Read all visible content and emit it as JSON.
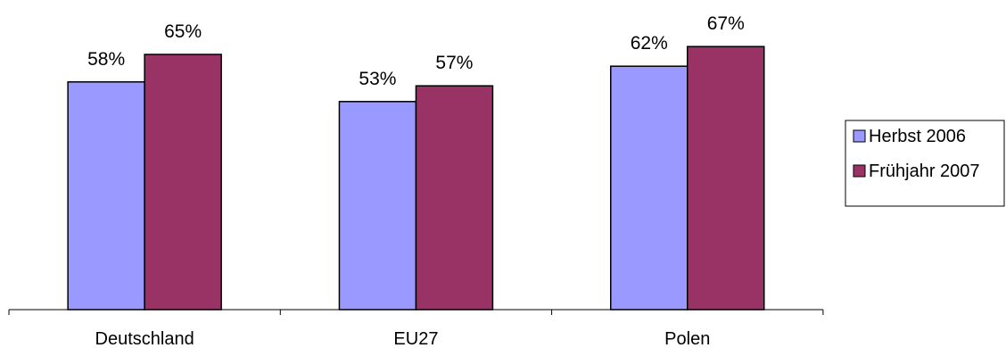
{
  "chart_data": {
    "type": "bar",
    "categories": [
      "Deutschland",
      "EU27",
      "Polen"
    ],
    "series": [
      {
        "name": "Herbst 2006",
        "values": [
          58,
          53,
          62
        ],
        "color": "#9999ff"
      },
      {
        "name": "Frühjahr 2007",
        "values": [
          65,
          57,
          67
        ],
        "color": "#993366"
      }
    ],
    "value_suffix": "%",
    "ylim": [
      0,
      100
    ],
    "grid": false,
    "legend": "right",
    "title": "",
    "xlabel": "",
    "ylabel": ""
  }
}
